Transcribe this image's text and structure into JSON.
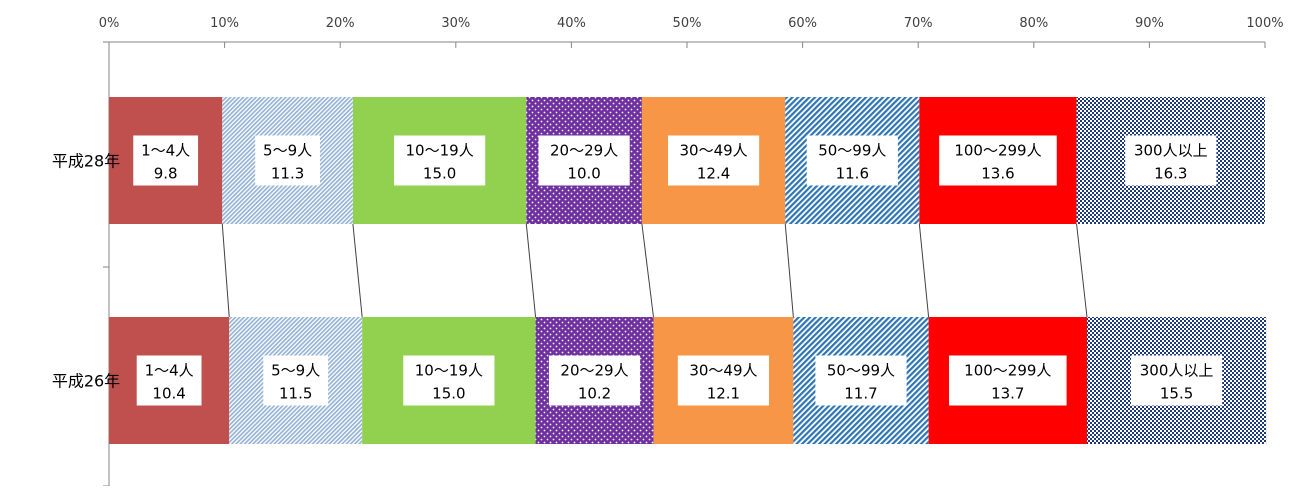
{
  "chart_data": {
    "type": "bar",
    "orientation": "horizontal",
    "stacked": "percent",
    "title": "",
    "xlabel": "",
    "ylabel": "",
    "xlim": [
      0,
      100
    ],
    "x_ticks": [
      "0%",
      "10%",
      "20%",
      "30%",
      "40%",
      "50%",
      "60%",
      "70%",
      "80%",
      "90%",
      "100%"
    ],
    "x_axis_position": "top",
    "grid": false,
    "legend": "none",
    "categories": [
      "平成28年",
      "平成26年"
    ],
    "series": [
      {
        "name": "1～4人",
        "values": [
          9.8,
          10.4
        ],
        "color": "#C0504D",
        "pattern": "solid"
      },
      {
        "name": "5～9人",
        "values": [
          11.3,
          11.5
        ],
        "color": "#95B3D7",
        "pattern": "fine-diagonal-stripe"
      },
      {
        "name": "10～19人",
        "values": [
          15.0,
          15.0
        ],
        "color": "#92D050",
        "pattern": "solid"
      },
      {
        "name": "20～29人",
        "values": [
          10.0,
          10.2
        ],
        "color": "#7030A0",
        "pattern": "white-dots"
      },
      {
        "name": "30～49人",
        "values": [
          12.4,
          12.1
        ],
        "color": "#F79646",
        "pattern": "solid"
      },
      {
        "name": "50～99人",
        "values": [
          11.6,
          11.7
        ],
        "color": "#2E75B6",
        "pattern": "wide-diagonal-stripe"
      },
      {
        "name": "100～299人",
        "values": [
          13.6,
          13.7
        ],
        "color": "#FF0000",
        "pattern": "solid"
      },
      {
        "name": "300人以上",
        "values": [
          16.3,
          15.5
        ],
        "color": "#1F3A7A",
        "pattern": "checker"
      }
    ],
    "data_labels": [
      [
        "9.8",
        "10.4"
      ],
      [
        "11.3",
        "11.5"
      ],
      [
        "15.0",
        "15.0"
      ],
      [
        "10.0",
        "10.2"
      ],
      [
        "12.4",
        "12.1"
      ],
      [
        "11.6",
        "11.7"
      ],
      [
        "13.6",
        "13.7"
      ],
      [
        "16.3",
        "15.5"
      ]
    ],
    "series_lines": true
  }
}
